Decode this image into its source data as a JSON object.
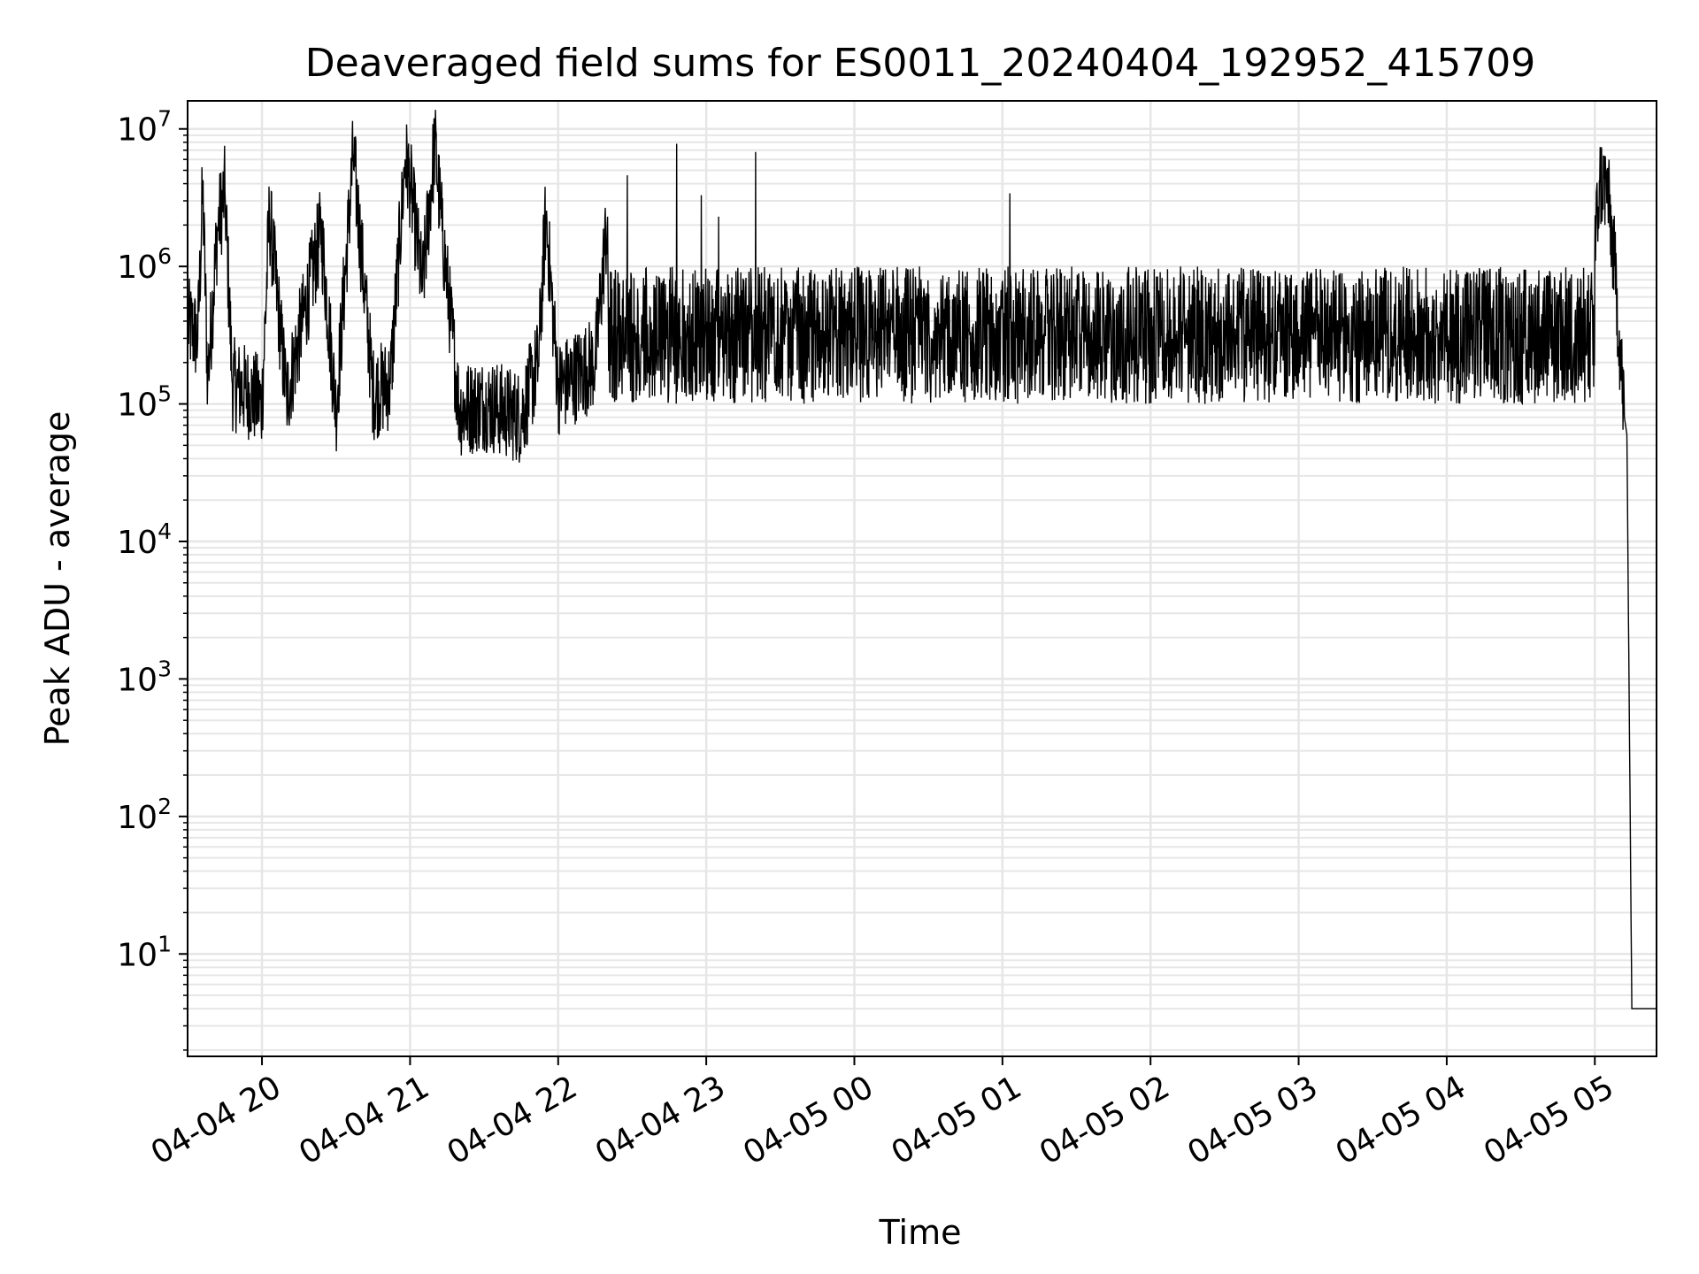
{
  "chart_data": {
    "type": "line",
    "title": "Deaveraged field sums for ES0011_20240404_192952_415709",
    "xlabel": "Time",
    "ylabel": "Peak ADU - average",
    "yscale": "log",
    "ylim": [
      1.8,
      16000000
    ],
    "xlim": [
      "2024-04-04 19:29:52",
      "2024-04-05 05:25:00"
    ],
    "x_ticks": [
      {
        "t": "2024-04-04 20:00",
        "label": "04-04 20"
      },
      {
        "t": "2024-04-04 21:00",
        "label": "04-04 21"
      },
      {
        "t": "2024-04-04 22:00",
        "label": "04-04 22"
      },
      {
        "t": "2024-04-04 23:00",
        "label": "04-04 23"
      },
      {
        "t": "2024-04-05 00:00",
        "label": "04-05 00"
      },
      {
        "t": "2024-04-05 01:00",
        "label": "04-05 01"
      },
      {
        "t": "2024-04-05 02:00",
        "label": "04-05 02"
      },
      {
        "t": "2024-04-05 03:00",
        "label": "04-05 03"
      },
      {
        "t": "2024-04-05 04:00",
        "label": "04-05 04"
      },
      {
        "t": "2024-04-05 05:00",
        "label": "04-05 05"
      }
    ],
    "y_ticks": [
      {
        "value": 10,
        "base": "10",
        "exp": "1"
      },
      {
        "value": 100,
        "base": "10",
        "exp": "2"
      },
      {
        "value": 1000,
        "base": "10",
        "exp": "3"
      },
      {
        "value": 10000,
        "base": "10",
        "exp": "4"
      },
      {
        "value": 100000,
        "base": "10",
        "exp": "5"
      },
      {
        "value": 1000000,
        "base": "10",
        "exp": "6"
      },
      {
        "value": 10000000,
        "base": "10",
        "exp": "7"
      }
    ],
    "grid": true,
    "line_color": "#000000",
    "grid_color": "#e6e6e6",
    "series": [
      {
        "points": [
          [
            "2024-04-04 19:30",
            380000
          ],
          [
            "2024-04-04 19:34",
            300000
          ],
          [
            "2024-04-04 19:36",
            3600000
          ],
          [
            "2024-04-04 19:38",
            150000
          ],
          [
            "2024-04-04 19:42",
            1900000
          ],
          [
            "2024-04-04 19:45",
            3500000
          ],
          [
            "2024-04-04 19:48",
            140000
          ],
          [
            "2024-04-04 19:55",
            120000
          ],
          [
            "2024-04-04 20:00",
            100000
          ],
          [
            "2024-04-04 20:03",
            2400000
          ],
          [
            "2024-04-04 20:10",
            110000
          ],
          [
            "2024-04-04 20:24",
            1800000
          ],
          [
            "2024-04-04 20:30",
            90000
          ],
          [
            "2024-04-04 20:37",
            6500000
          ],
          [
            "2024-04-04 20:45",
            120000
          ],
          [
            "2024-04-04 20:52",
            140000
          ],
          [
            "2024-04-04 20:58",
            6000000
          ],
          [
            "2024-04-04 21:00",
            4100000
          ],
          [
            "2024-04-04 21:05",
            700000
          ],
          [
            "2024-04-04 21:10",
            7900000
          ],
          [
            "2024-04-04 21:13",
            1800000
          ],
          [
            "2024-04-04 21:20",
            90000
          ],
          [
            "2024-04-04 21:30",
            100000
          ],
          [
            "2024-04-04 21:45",
            80000
          ],
          [
            "2024-04-04 21:52",
            200000
          ],
          [
            "2024-04-04 21:55",
            2400000
          ],
          [
            "2024-04-04 22:00",
            130000
          ],
          [
            "2024-04-04 22:15",
            200000
          ],
          [
            "2024-04-04 22:20",
            2300000
          ],
          [
            "2024-04-04 22:28",
            4600000
          ],
          [
            "2024-04-04 22:40",
            200000
          ],
          [
            "2024-04-04 22:48",
            7800000
          ],
          [
            "2024-04-04 22:58",
            3300000
          ],
          [
            "2024-04-04 23:05",
            2300000
          ],
          [
            "2024-04-04 23:20",
            6800000
          ],
          [
            "2024-04-04 23:30",
            300000
          ],
          [
            "2024-04-05 00:00",
            300000
          ],
          [
            "2024-04-05 00:30",
            350000
          ],
          [
            "2024-04-05 01:03",
            3400000
          ],
          [
            "2024-04-05 01:30",
            500000
          ],
          [
            "2024-04-05 02:00",
            500000
          ],
          [
            "2024-04-05 02:30",
            400000
          ],
          [
            "2024-04-05 03:00",
            350000
          ],
          [
            "2024-04-05 03:30",
            400000
          ],
          [
            "2024-04-05 04:00",
            400000
          ],
          [
            "2024-04-05 04:30",
            450000
          ],
          [
            "2024-04-05 04:55",
            500000
          ],
          [
            "2024-04-05 05:00",
            1300000
          ],
          [
            "2024-04-05 05:02",
            4100000
          ],
          [
            "2024-04-05 05:05",
            3800000
          ],
          [
            "2024-04-05 05:08",
            1000000
          ],
          [
            "2024-04-05 05:12",
            80000
          ],
          [
            "2024-04-05 05:13",
            60000
          ],
          [
            "2024-04-05 05:15",
            4
          ],
          [
            "2024-04-05 05:25",
            4
          ]
        ]
      }
    ]
  }
}
